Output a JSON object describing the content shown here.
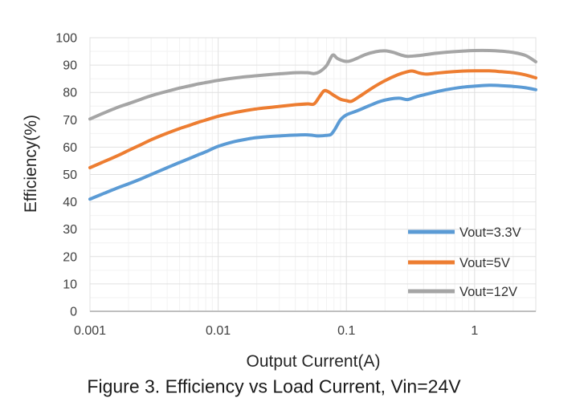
{
  "figure": {
    "caption": "Figure 3. Efficiency vs Load Current, Vin=24V"
  },
  "chart_data": {
    "type": "line",
    "title": "",
    "xlabel": "Output Current(A)",
    "ylabel": "Efficiency(%)",
    "x_scale": "log",
    "xlim": [
      0.001,
      3
    ],
    "ylim": [
      0,
      100
    ],
    "grid": "major and minor, light gray",
    "legend_position": "inside bottom-right",
    "x_ticks": [
      {
        "v": 0.001,
        "label": "0.001"
      },
      {
        "v": 0.01,
        "label": "0.01"
      },
      {
        "v": 0.1,
        "label": "0.1"
      },
      {
        "v": 1,
        "label": "1"
      }
    ],
    "y_ticks": [
      {
        "v": 0,
        "label": "0"
      },
      {
        "v": 10,
        "label": "10"
      },
      {
        "v": 20,
        "label": "20"
      },
      {
        "v": 30,
        "label": "30"
      },
      {
        "v": 40,
        "label": "40"
      },
      {
        "v": 50,
        "label": "50"
      },
      {
        "v": 60,
        "label": "60"
      },
      {
        "v": 70,
        "label": "70"
      },
      {
        "v": 80,
        "label": "80"
      },
      {
        "v": 90,
        "label": "90"
      },
      {
        "v": 100,
        "label": "100"
      }
    ],
    "y_tick_step": 10,
    "y_minor_step": 5,
    "colors": {
      "grid_major": "#E0E0E0",
      "grid_minor": "#F2F2F2",
      "axis": "#BFBFBF",
      "tick_text": "#404040",
      "legend_text": "#333333"
    },
    "series": [
      {
        "name": "Vout=3.3V",
        "color": "#5B9BD5",
        "points": [
          [
            0.001,
            41
          ],
          [
            0.0013,
            43.2
          ],
          [
            0.0017,
            45.4
          ],
          [
            0.002,
            46.6
          ],
          [
            0.0025,
            48.4
          ],
          [
            0.003,
            50
          ],
          [
            0.004,
            52.5
          ],
          [
            0.005,
            54.4
          ],
          [
            0.006,
            55.9
          ],
          [
            0.007,
            57.2
          ],
          [
            0.008,
            58.3
          ],
          [
            0.01,
            60.3
          ],
          [
            0.013,
            61.9
          ],
          [
            0.017,
            63
          ],
          [
            0.02,
            63.5
          ],
          [
            0.025,
            63.9
          ],
          [
            0.03,
            64.1
          ],
          [
            0.04,
            64.4
          ],
          [
            0.05,
            64.5
          ],
          [
            0.06,
            64.1
          ],
          [
            0.07,
            64.3
          ],
          [
            0.076,
            64.7
          ],
          [
            0.082,
            66.8
          ],
          [
            0.09,
            70
          ],
          [
            0.1,
            71.8
          ],
          [
            0.12,
            73.2
          ],
          [
            0.15,
            75.1
          ],
          [
            0.18,
            76.6
          ],
          [
            0.22,
            77.6
          ],
          [
            0.26,
            77.9
          ],
          [
            0.3,
            77.4
          ],
          [
            0.35,
            78.4
          ],
          [
            0.4,
            79.1
          ],
          [
            0.5,
            80.2
          ],
          [
            0.6,
            81
          ],
          [
            0.8,
            81.9
          ],
          [
            1,
            82.3
          ],
          [
            1.3,
            82.6
          ],
          [
            1.6,
            82.5
          ],
          [
            2,
            82.2
          ],
          [
            2.5,
            81.7
          ],
          [
            3,
            81
          ]
        ]
      },
      {
        "name": "Vout=5V",
        "color": "#ED7D31",
        "points": [
          [
            0.001,
            52.5
          ],
          [
            0.0013,
            54.8
          ],
          [
            0.0017,
            57.2
          ],
          [
            0.002,
            58.8
          ],
          [
            0.0025,
            60.9
          ],
          [
            0.003,
            62.7
          ],
          [
            0.004,
            65.1
          ],
          [
            0.005,
            66.8
          ],
          [
            0.006,
            68
          ],
          [
            0.007,
            69.1
          ],
          [
            0.008,
            69.9
          ],
          [
            0.01,
            71.3
          ],
          [
            0.013,
            72.5
          ],
          [
            0.017,
            73.5
          ],
          [
            0.02,
            74
          ],
          [
            0.025,
            74.5
          ],
          [
            0.03,
            74.9
          ],
          [
            0.04,
            75.5
          ],
          [
            0.05,
            75.8
          ],
          [
            0.056,
            75.8
          ],
          [
            0.062,
            78.6
          ],
          [
            0.067,
            80.6
          ],
          [
            0.072,
            80.3
          ],
          [
            0.08,
            78.9
          ],
          [
            0.09,
            77.5
          ],
          [
            0.1,
            77
          ],
          [
            0.11,
            76.8
          ],
          [
            0.13,
            78.9
          ],
          [
            0.16,
            81.7
          ],
          [
            0.2,
            84.3
          ],
          [
            0.25,
            86.4
          ],
          [
            0.3,
            87.6
          ],
          [
            0.33,
            87.8
          ],
          [
            0.37,
            87.1
          ],
          [
            0.42,
            86.7
          ],
          [
            0.5,
            87
          ],
          [
            0.6,
            87.4
          ],
          [
            0.8,
            87.8
          ],
          [
            1,
            87.9
          ],
          [
            1.3,
            87.9
          ],
          [
            1.6,
            87.6
          ],
          [
            2,
            87.2
          ],
          [
            2.5,
            86.4
          ],
          [
            3,
            85.3
          ]
        ]
      },
      {
        "name": "Vout=12V",
        "color": "#A5A5A5",
        "points": [
          [
            0.001,
            70.3
          ],
          [
            0.0013,
            72.6
          ],
          [
            0.0017,
            74.8
          ],
          [
            0.002,
            75.9
          ],
          [
            0.0025,
            77.5
          ],
          [
            0.003,
            78.8
          ],
          [
            0.004,
            80.4
          ],
          [
            0.005,
            81.6
          ],
          [
            0.006,
            82.4
          ],
          [
            0.007,
            83.1
          ],
          [
            0.008,
            83.6
          ],
          [
            0.01,
            84.4
          ],
          [
            0.013,
            85.2
          ],
          [
            0.017,
            85.8
          ],
          [
            0.02,
            86.1
          ],
          [
            0.025,
            86.5
          ],
          [
            0.03,
            86.8
          ],
          [
            0.04,
            87.2
          ],
          [
            0.05,
            87.2
          ],
          [
            0.056,
            86.9
          ],
          [
            0.062,
            87.6
          ],
          [
            0.07,
            89.8
          ],
          [
            0.078,
            93.6
          ],
          [
            0.085,
            92.4
          ],
          [
            0.095,
            91.5
          ],
          [
            0.105,
            91.4
          ],
          [
            0.12,
            92.4
          ],
          [
            0.14,
            93.8
          ],
          [
            0.17,
            94.9
          ],
          [
            0.2,
            95.2
          ],
          [
            0.23,
            94.7
          ],
          [
            0.27,
            93.6
          ],
          [
            0.3,
            93.2
          ],
          [
            0.35,
            93.4
          ],
          [
            0.4,
            93.7
          ],
          [
            0.5,
            94.3
          ],
          [
            0.6,
            94.7
          ],
          [
            0.8,
            95.1
          ],
          [
            1,
            95.3
          ],
          [
            1.3,
            95.3
          ],
          [
            1.6,
            95.1
          ],
          [
            2,
            94.6
          ],
          [
            2.5,
            93.5
          ],
          [
            3,
            91.2
          ]
        ]
      }
    ]
  }
}
